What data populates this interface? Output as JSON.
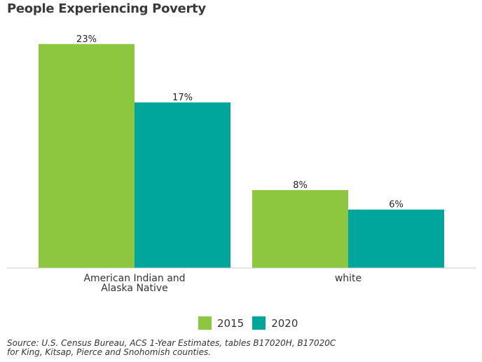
{
  "title": "People Experiencing Poverty",
  "chart_data": {
    "type": "bar",
    "categories": [
      [
        "American Indian and",
        "Alaska Native"
      ],
      [
        "white"
      ]
    ],
    "series": [
      {
        "name": "2015",
        "color": "#8dc63f",
        "values": [
          23,
          8
        ],
        "labels": [
          "23%",
          "8%"
        ]
      },
      {
        "name": "2020",
        "color": "#00a69c",
        "values": [
          17,
          6
        ],
        "labels": [
          "17%",
          "6%"
        ]
      }
    ],
    "ylim": [
      0,
      25
    ],
    "grid": false,
    "legend_position": "bottom"
  },
  "source": {
    "line1": "Source: U.S. Census Bureau, ACS 1-Year Estimates, tables B17020H, B17020C",
    "line2": "for King, Kitsap, Pierce and Snohomish counties."
  }
}
